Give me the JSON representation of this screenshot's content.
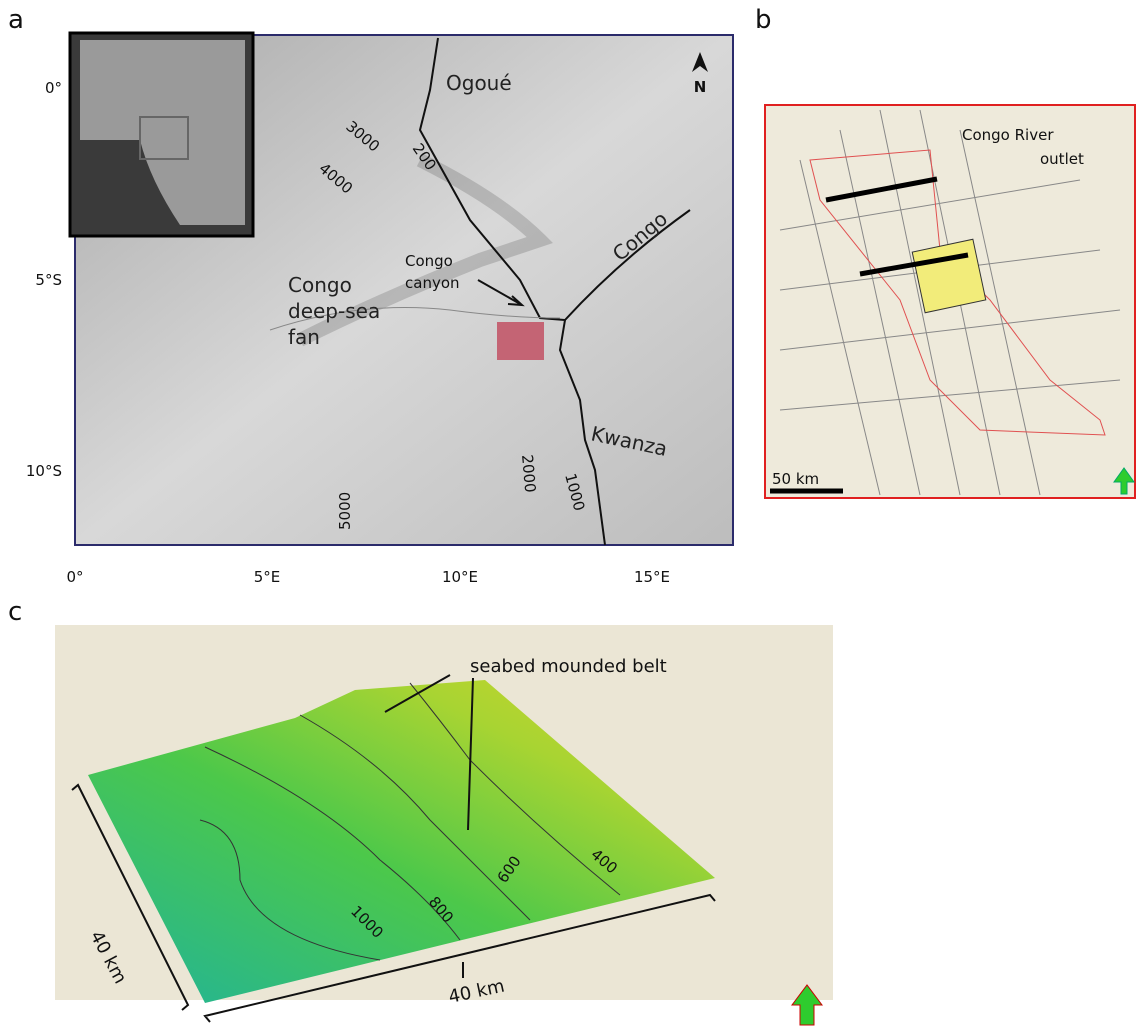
{
  "panel_a": {
    "label": "a",
    "north": "N",
    "lat_ticks": [
      "0°",
      "5°S",
      "10°S"
    ],
    "lon_ticks": [
      "0°",
      "5°E",
      "10°E",
      "15°E"
    ],
    "rivers": [
      "Ogoué",
      "Congo",
      "Kwanza"
    ],
    "fan": [
      "Congo",
      "deep-sea",
      "fan"
    ],
    "canyon": [
      "Congo",
      "canyon"
    ],
    "contours": [
      "3000",
      "4000",
      "200",
      "2000",
      "1000",
      "5000"
    ]
  },
  "panel_b": {
    "label": "b",
    "outlet": [
      "Congo  River",
      "outlet"
    ],
    "scale": "50 km"
  },
  "panel_c": {
    "label": "c",
    "annotation": "seabed mounded belt",
    "contours": [
      "400",
      "600",
      "800",
      "1000"
    ],
    "scale_x": "40 km",
    "scale_y": "40 km"
  }
}
